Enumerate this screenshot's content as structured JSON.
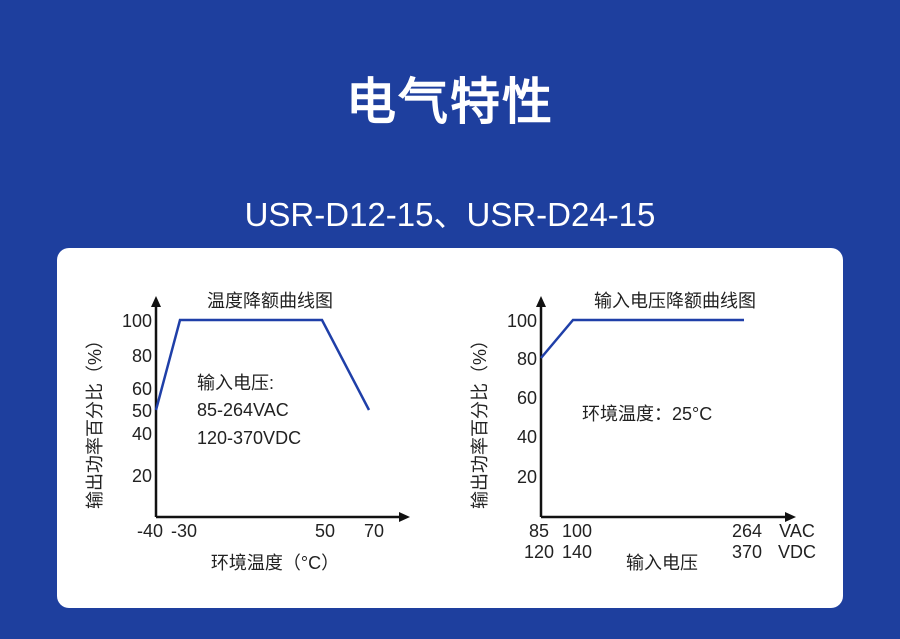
{
  "header": {
    "title": "电气特性",
    "subtitle": "USR-D12-15、USR-D24-15"
  },
  "colors": {
    "background": "#1e3f9e",
    "line": "#1f3fa8",
    "axis": "#111111"
  },
  "chart_data": [
    {
      "type": "line",
      "title": "温度降额曲线图",
      "xlabel": "环境温度（°C）",
      "ylabel": "输出功率百分比（%）",
      "annotation": [
        "输入电压:",
        "85-264VAC",
        "120-370VDC"
      ],
      "x_ticks": [
        "-40",
        "-30",
        "50",
        "70"
      ],
      "y_ticks": [
        "100",
        "80",
        "60",
        "50",
        "40",
        "20"
      ],
      "series": [
        {
          "x": [
            -40,
            -30,
            50,
            70
          ],
          "y": [
            50,
            100,
            100,
            50
          ]
        }
      ]
    },
    {
      "type": "line",
      "title": "输入电压降额曲线图",
      "xlabel": "输入电压",
      "ylabel": "输出功率百分比（%）",
      "annotation": [
        "环境温度：25°C"
      ],
      "x_ticks": [
        "85",
        "100",
        "264"
      ],
      "x_ticks_dc": [
        "120",
        "140",
        "370"
      ],
      "x_units": [
        "VAC",
        "VDC"
      ],
      "y_ticks": [
        "100",
        "80",
        "60",
        "40",
        "20"
      ],
      "series": [
        {
          "x": [
            85,
            100,
            264
          ],
          "y": [
            80,
            100,
            100
          ]
        }
      ]
    }
  ]
}
